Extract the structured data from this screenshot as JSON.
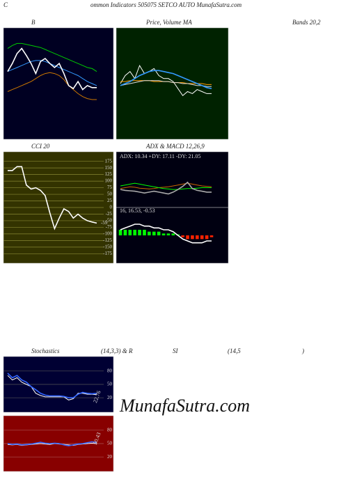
{
  "header": {
    "first": "C",
    "rest": "ommon  Indicators 505075 SETCO AUTO MunafaSutra.com",
    "bands": "Bands 20,2",
    "watermark": "MunafaSutra.com",
    "stoch_title": [
      "Stochastics",
      "(14,3,3) & R",
      "SI",
      "(14,5",
      ")"
    ]
  },
  "chart_data": [
    {
      "type": "line",
      "title": "B",
      "background": "#000022",
      "ylim": [
        0,
        100
      ],
      "series": [
        {
          "color": "#00cc00",
          "values": [
            85,
            88,
            90,
            90,
            89,
            88,
            87,
            86,
            84,
            82,
            80,
            78,
            76,
            74,
            72,
            70,
            68,
            66,
            65,
            62
          ]
        },
        {
          "color": "#cc7700",
          "values": [
            42,
            44,
            46,
            48,
            50,
            52,
            55,
            58,
            60,
            61,
            60,
            58,
            54,
            48,
            44,
            40,
            37,
            35,
            34,
            34
          ]
        },
        {
          "color": "#3399ff",
          "values": [
            62,
            64,
            66,
            68,
            70,
            72,
            73,
            73,
            72,
            70,
            68,
            66,
            64,
            62,
            60,
            58,
            55,
            52,
            50,
            48
          ]
        },
        {
          "color": "#ffffff",
          "values": [
            62,
            70,
            80,
            85,
            78,
            70,
            60,
            72,
            75,
            70,
            66,
            70,
            60,
            48,
            45,
            52,
            44,
            48,
            46,
            46
          ]
        }
      ]
    },
    {
      "type": "line",
      "title": "Price, Volume MA",
      "background": "#002200",
      "ylim": [
        0,
        100
      ],
      "series": [
        {
          "color": "#ffffff",
          "values": [
            50,
            58,
            62,
            55,
            68,
            60,
            62,
            65,
            58,
            55,
            55,
            52,
            45,
            38,
            42,
            40,
            44,
            42,
            40,
            40
          ]
        },
        {
          "color": "#ff9900",
          "values": [
            52,
            52,
            53,
            53,
            53,
            53,
            53,
            52,
            52,
            52,
            52,
            51,
            51,
            51,
            50,
            50,
            50,
            50,
            49,
            49
          ]
        },
        {
          "color": "#dddddd",
          "values": [
            48,
            49,
            50,
            51,
            52,
            53,
            53,
            53,
            53,
            52,
            52,
            51,
            51,
            50,
            50,
            49,
            48,
            48,
            47,
            47
          ]
        },
        {
          "color": "#3399ff",
          "values": [
            48,
            50,
            52,
            55,
            58,
            60,
            62,
            63,
            63,
            62,
            61,
            60,
            58,
            56,
            54,
            52,
            50,
            48,
            46,
            45
          ]
        }
      ]
    },
    {
      "type": "line",
      "title": "CCI 20",
      "background": "#333300",
      "ylim": [
        -190,
        190
      ],
      "grid_color": "#888833",
      "yticks": [
        175,
        150,
        125,
        100,
        75,
        50,
        25,
        0,
        -25,
        -50,
        -75,
        -100,
        -125,
        -150,
        -175
      ],
      "series": [
        {
          "color": "#ffffff",
          "values": [
            140,
            140,
            155,
            155,
            85,
            70,
            75,
            65,
            45,
            -20,
            -80,
            -40,
            -5,
            -15,
            -40,
            -25,
            -40,
            -50,
            -55,
            -59
          ]
        }
      ]
    },
    {
      "type": "line",
      "title": "ADX  & MACD 12,26,9",
      "label": "ADX: 10.34  +DY: 17.11 -DY: 21.05",
      "background": "#000011",
      "ylim": [
        0,
        100
      ],
      "series": [
        {
          "color": "#cc6600",
          "values": [
            30,
            32,
            34,
            33,
            31,
            30,
            29,
            30,
            32,
            33,
            34,
            36,
            38,
            40,
            42,
            40,
            38,
            36,
            35,
            34
          ]
        },
        {
          "color": "#00ff00",
          "values": [
            36,
            38,
            40,
            42,
            40,
            38,
            36,
            34,
            32,
            30,
            29,
            28,
            28,
            29,
            30,
            30,
            31,
            32,
            32,
            32
          ]
        },
        {
          "color": "#aaaaaa",
          "values": [
            28,
            26,
            25,
            24,
            22,
            20,
            22,
            24,
            22,
            20,
            18,
            22,
            28,
            35,
            44,
            30,
            26,
            24,
            22,
            22
          ]
        }
      ]
    },
    {
      "type": "bar",
      "label": "16, 16.53, -0.53",
      "background": "#000011",
      "ylim": [
        -12,
        12
      ],
      "color_up": "#00ff00",
      "color_down": "#ff2200",
      "values": [
        3,
        3,
        3,
        3,
        3,
        3,
        2,
        2,
        2,
        1,
        1,
        1,
        0.5,
        -1,
        -2,
        -2,
        -2,
        -2,
        -2,
        -1
      ],
      "series": [
        {
          "color": "#ffffff",
          "values": [
            3,
            4,
            5,
            6,
            6,
            5,
            5,
            4,
            4,
            3,
            3,
            2,
            0,
            -2,
            -3,
            -4,
            -4,
            -4,
            -3,
            -3
          ]
        }
      ]
    },
    {
      "type": "line",
      "label": "22.76",
      "background": "#000033",
      "ylim": [
        0,
        100
      ],
      "grid_color": "#555555",
      "yticks": [
        80,
        50,
        20
      ],
      "series": [
        {
          "color": "#ffffff",
          "values": [
            70,
            60,
            65,
            55,
            50,
            45,
            30,
            25,
            22,
            22,
            22,
            22,
            22,
            15,
            18,
            30,
            30,
            28,
            28,
            27
          ]
        },
        {
          "color": "#3366ff",
          "values": [
            75,
            65,
            70,
            60,
            55,
            45,
            38,
            30,
            26,
            24,
            24,
            24,
            23,
            20,
            20,
            28,
            32,
            30,
            29,
            30
          ]
        }
      ]
    },
    {
      "type": "line",
      "label": "50.43",
      "background": "#880000",
      "ylim": [
        0,
        100
      ],
      "grid_color": "#aa5555",
      "yticks": [
        80,
        50,
        20
      ],
      "series": [
        {
          "color": "#ffffff",
          "values": [
            48,
            47,
            48,
            46,
            47,
            48,
            49,
            50,
            49,
            48,
            50,
            49,
            48,
            47,
            46,
            48,
            49,
            50,
            51,
            50
          ]
        },
        {
          "color": "#3366ff",
          "values": [
            50,
            48,
            49,
            47,
            48,
            49,
            51,
            53,
            51,
            50,
            51,
            50,
            47,
            45,
            47,
            49,
            50,
            52,
            54,
            52
          ]
        }
      ]
    }
  ]
}
